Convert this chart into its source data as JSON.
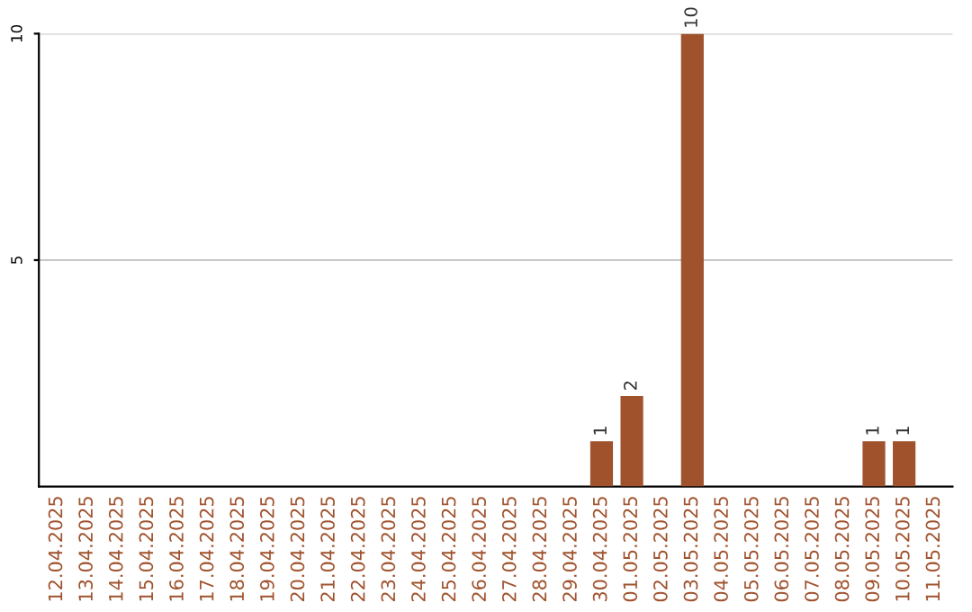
{
  "chart_data": {
    "type": "bar",
    "categories": [
      "12.04.2025",
      "13.04.2025",
      "14.04.2025",
      "15.04.2025",
      "16.04.2025",
      "17.04.2025",
      "18.04.2025",
      "19.04.2025",
      "20.04.2025",
      "21.04.2025",
      "22.04.2025",
      "23.04.2025",
      "24.04.2025",
      "25.04.2025",
      "26.04.2025",
      "27.04.2025",
      "28.04.2025",
      "29.04.2025",
      "30.04.2025",
      "01.05.2025",
      "02.05.2025",
      "03.05.2025",
      "04.05.2025",
      "05.05.2025",
      "06.05.2025",
      "07.05.2025",
      "08.05.2025",
      "09.05.2025",
      "10.05.2025",
      "11.05.2025"
    ],
    "values": [
      0,
      0,
      0,
      0,
      0,
      0,
      0,
      0,
      0,
      0,
      0,
      0,
      0,
      0,
      0,
      0,
      0,
      0,
      1,
      2,
      0,
      10,
      0,
      0,
      0,
      0,
      0,
      1,
      1,
      0
    ],
    "value_labels": [
      null,
      null,
      null,
      null,
      null,
      null,
      null,
      null,
      null,
      null,
      null,
      null,
      null,
      null,
      null,
      null,
      null,
      null,
      "1",
      "2",
      null,
      "10",
      null,
      null,
      null,
      null,
      null,
      "1",
      "1",
      null
    ],
    "color": "#a0522d",
    "ylim": [
      0,
      10
    ],
    "yticks": [
      5,
      10
    ],
    "grid": "y"
  }
}
